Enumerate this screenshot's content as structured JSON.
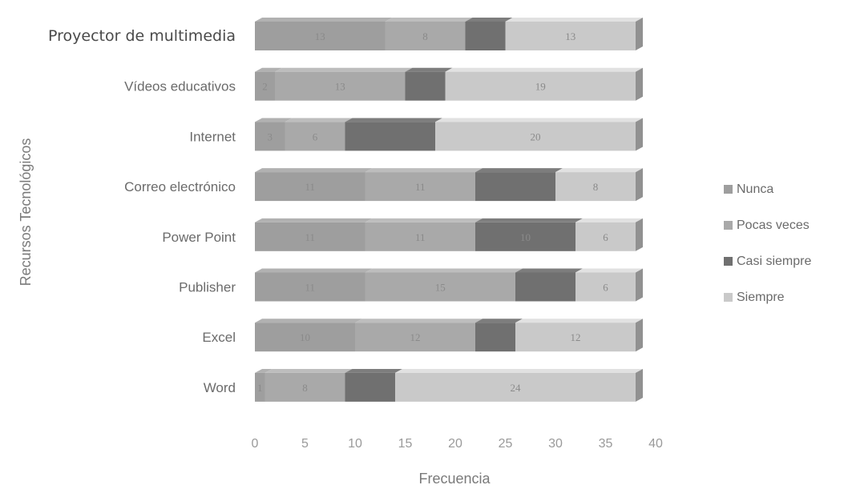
{
  "chart_data": {
    "type": "bar",
    "orientation": "horizontal",
    "stacked": true,
    "three_d": true,
    "xlabel": "Frecuencia",
    "ylabel": "Recursos Tecnológicos",
    "xlim": [
      0,
      40
    ],
    "xticks": [
      0,
      5,
      10,
      15,
      20,
      25,
      30,
      35,
      40
    ],
    "grid": false,
    "legend_position": "right",
    "categories": [
      "Proyector de multimedia",
      "Vídeos educativos",
      "Internet",
      "Correo electrónico",
      "Power Point",
      "Publisher",
      "Excel",
      "Word"
    ],
    "series": [
      {
        "name": "Nunca",
        "color": "#9e9e9e",
        "values": [
          13,
          2,
          3,
          11,
          11,
          11,
          10,
          1
        ],
        "labels": [
          "13",
          "2",
          "3",
          "11",
          "11",
          "11",
          "10",
          "1"
        ]
      },
      {
        "name": "Pocas veces",
        "color": "#a9a9a9",
        "values": [
          8,
          13,
          6,
          11,
          11,
          15,
          12,
          8
        ],
        "labels": [
          "8",
          "13",
          "6",
          "11",
          "11",
          "15",
          "12",
          "8"
        ]
      },
      {
        "name": "Casi siempre",
        "color": "#707070",
        "values": [
          4,
          4,
          9,
          8,
          10,
          6,
          4,
          5
        ],
        "labels": [
          "",
          "",
          "",
          "",
          "10",
          "",
          "",
          ""
        ]
      },
      {
        "name": "Siempre",
        "color": "#c9c9c9",
        "values": [
          13,
          19,
          20,
          8,
          6,
          6,
          12,
          24
        ],
        "labels": [
          "13",
          "19",
          "20",
          "8",
          "6",
          "6",
          "12",
          "24"
        ]
      }
    ]
  }
}
